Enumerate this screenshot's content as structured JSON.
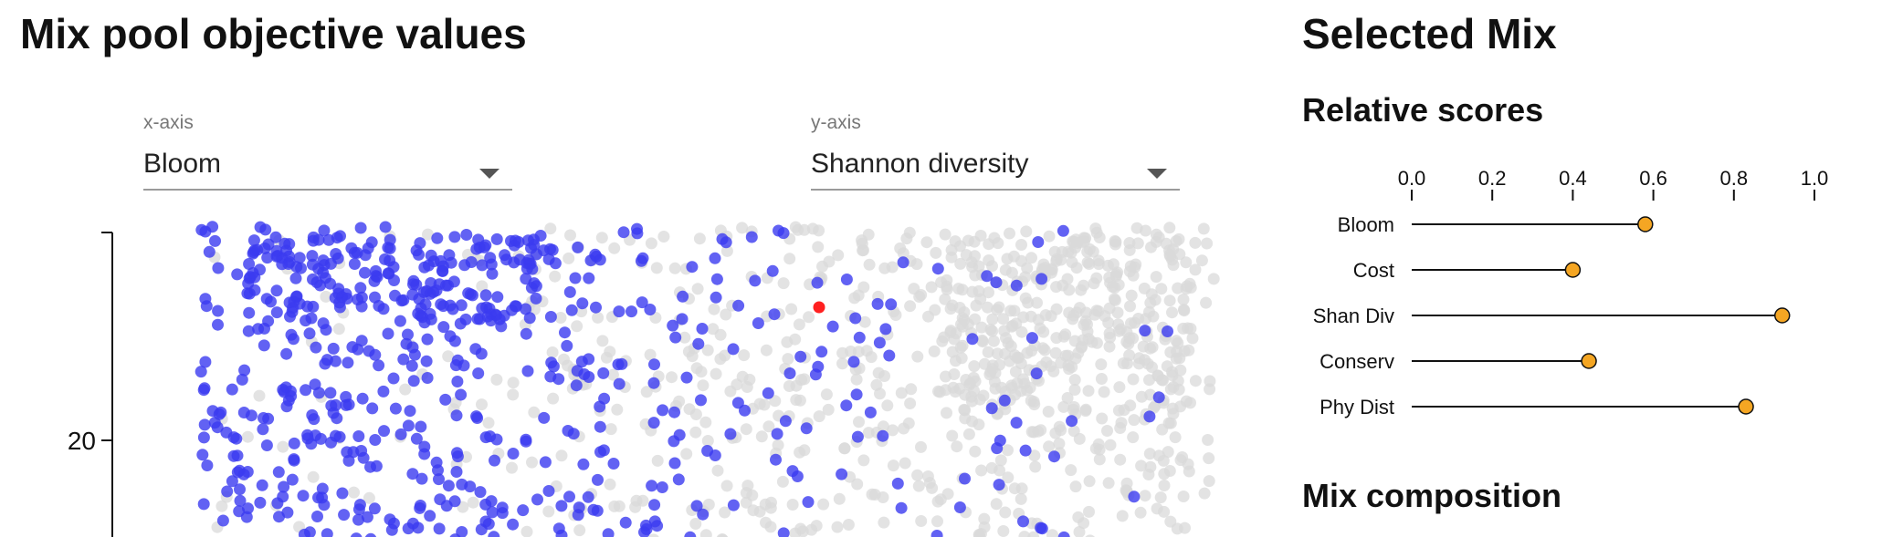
{
  "left_panel": {
    "title": "Mix pool objective values",
    "x_select": {
      "label": "x-axis",
      "value": "Bloom"
    },
    "y_select": {
      "label": "y-axis",
      "value": "Shannon diversity"
    }
  },
  "right_panel": {
    "title": "Selected Mix",
    "relative_scores_title": "Relative scores",
    "mix_composition_title": "Mix composition"
  },
  "colors": {
    "pareto": "#3b3bf0",
    "other": "#d9d9d9",
    "selected": "#ff2020",
    "dumbbell_dot": "#f5a623"
  },
  "chart_data": [
    {
      "type": "scatter",
      "xlabel": "",
      "ylabel": "",
      "y_ticks": [
        20
      ],
      "y_tick_labels": [
        "20"
      ],
      "description_series": [
        {
          "name": "",
          "values": "point cloud"
        }
      ],
      "selected_point": {
        "x": 0.44,
        "y": 25.7
      }
    },
    {
      "type": "bar",
      "categories": [
        "Bloom",
        "Cost",
        "Shan Div",
        "Conserv",
        "Phy Dist"
      ],
      "values": [
        0.58,
        0.4,
        0.92,
        0.44,
        0.83
      ],
      "xlim": [
        0,
        1
      ],
      "ticks": [
        0.0,
        0.2,
        0.4,
        0.6,
        0.8,
        1.0
      ],
      "tick_labels": [
        "0.0",
        "0.2",
        "0.4",
        "0.6",
        "0.8",
        "1.0"
      ]
    }
  ]
}
